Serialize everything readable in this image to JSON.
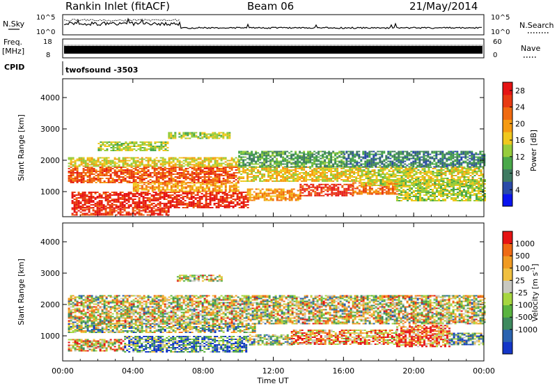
{
  "header": {
    "station": "Rankin Inlet (fitACF)",
    "beam": "Beam 06",
    "date": "21/May/2014"
  },
  "top_panels": {
    "nsky_label": "N.Sky",
    "nsky_ticks": [
      "10^5",
      "10^0"
    ],
    "nsearch_label": "N.Search",
    "nsearch_ticks": [
      "10^5",
      "10^0"
    ],
    "freq_label_top": "Freq.",
    "freq_label_bottom": "[MHz]",
    "freq_ticks": [
      "18",
      "8"
    ],
    "nave_label": "Nave",
    "nave_ticks": [
      "60",
      "0"
    ],
    "cpid_label": "CPID",
    "cpid_value": "twofsound -3503"
  },
  "chart_data": [
    {
      "type": "heatmap",
      "panel": "power",
      "ylabel": "Slant Range [km]",
      "xlabel": "",
      "x_ticks": [
        "00:00",
        "04:00",
        "08:00",
        "12:00",
        "16:00",
        "20:00",
        "00:00"
      ],
      "xlim_hours": [
        0,
        24
      ],
      "y_ticks": [
        1000,
        2000,
        3000,
        4000
      ],
      "ylim": [
        200,
        4600
      ],
      "colorbar": {
        "label": "Power [dB]",
        "ticks": [
          "4",
          "8",
          "12",
          "16",
          "20",
          "24",
          "28"
        ],
        "range": [
          0,
          30
        ],
        "colors": [
          "#0a14f0",
          "#2a4aa8",
          "#3f7a62",
          "#4aa84a",
          "#96cc3c",
          "#f0c81e",
          "#f59a12",
          "#f06a10",
          "#e83a12",
          "#e61414"
        ]
      },
      "bands": [
        {
          "t0": 0.5,
          "t1": 10.5,
          "r0": 500,
          "r1": 1000,
          "value": 27
        },
        {
          "t0": 10.5,
          "t1": 13.5,
          "r0": 700,
          "r1": 1100,
          "value": 20
        },
        {
          "t0": 13.5,
          "t1": 16.5,
          "r0": 850,
          "r1": 1250,
          "value": 26
        },
        {
          "t0": 16.5,
          "t1": 19,
          "r0": 900,
          "r1": 1300,
          "value": 22
        },
        {
          "t0": 19,
          "t1": 24,
          "r0": 700,
          "r1": 1400,
          "value": 14
        },
        {
          "t0": 0.3,
          "t1": 10,
          "r0": 1300,
          "r1": 1800,
          "value": 24
        },
        {
          "t0": 10,
          "t1": 17,
          "r0": 1350,
          "r1": 1800,
          "value": 17
        },
        {
          "t0": 17,
          "t1": 24,
          "r0": 1200,
          "r1": 1800,
          "value": 15
        },
        {
          "t0": 0.3,
          "t1": 10,
          "r0": 1800,
          "r1": 2100,
          "value": 16
        },
        {
          "t0": 10,
          "t1": 16,
          "r0": 1800,
          "r1": 2300,
          "value": 10
        },
        {
          "t0": 16,
          "t1": 24,
          "r0": 1800,
          "r1": 2300,
          "value": 8
        },
        {
          "t0": 2,
          "t1": 6,
          "r0": 2300,
          "r1": 2600,
          "value": 14
        },
        {
          "t0": 6,
          "t1": 9.5,
          "r0": 2700,
          "r1": 2900,
          "value": 14
        },
        {
          "t0": 4,
          "t1": 10,
          "r0": 1000,
          "r1": 1300,
          "value": 19
        },
        {
          "t0": 0.5,
          "t1": 6,
          "r0": 250,
          "r1": 500,
          "value": 26
        }
      ]
    },
    {
      "type": "heatmap",
      "panel": "velocity",
      "ylabel": "Slant Range [km]",
      "xlabel": "Time UT",
      "x_ticks": [
        "00:00",
        "04:00",
        "08:00",
        "12:00",
        "16:00",
        "20:00",
        "00:00"
      ],
      "xlim_hours": [
        0,
        24
      ],
      "y_ticks": [
        1000,
        2000,
        3000,
        4000
      ],
      "ylim": [
        200,
        4600
      ],
      "colorbar": {
        "label_parts": [
          "Velocity [m s",
          "-1",
          "]"
        ],
        "ticks": [
          "1000",
          "500",
          "100",
          "25",
          "-25",
          "-100",
          "-500",
          "-1000"
        ],
        "colors": [
          "#1436c8",
          "#2b63b0",
          "#3e8a5e",
          "#5ab440",
          "#a6d640",
          "#c8c8c0",
          "#f0c040",
          "#f09a22",
          "#ef6a14",
          "#e61414"
        ]
      },
      "bands": [
        {
          "t0": 0.3,
          "t1": 3.5,
          "r0": 500,
          "r1": 900,
          "value": 6
        },
        {
          "t0": 3.5,
          "t1": 10.5,
          "r0": 500,
          "r1": 1000,
          "value": 2
        },
        {
          "t0": 10.5,
          "t1": 13,
          "r0": 700,
          "r1": 1050,
          "value": 4
        },
        {
          "t0": 13,
          "t1": 19,
          "r0": 750,
          "r1": 1200,
          "value": 7
        },
        {
          "t0": 19,
          "t1": 22,
          "r0": 650,
          "r1": 1350,
          "value": 8
        },
        {
          "t0": 22,
          "t1": 24,
          "r0": 700,
          "r1": 1100,
          "value": 3
        },
        {
          "t0": 0.3,
          "t1": 11,
          "r0": 1100,
          "r1": 1400,
          "value": 4
        },
        {
          "t0": 0.3,
          "t1": 24,
          "r0": 1400,
          "r1": 2300,
          "value": 5
        },
        {
          "t0": 6.5,
          "t1": 9,
          "r0": 2750,
          "r1": 2950,
          "value": 5
        }
      ]
    }
  ]
}
